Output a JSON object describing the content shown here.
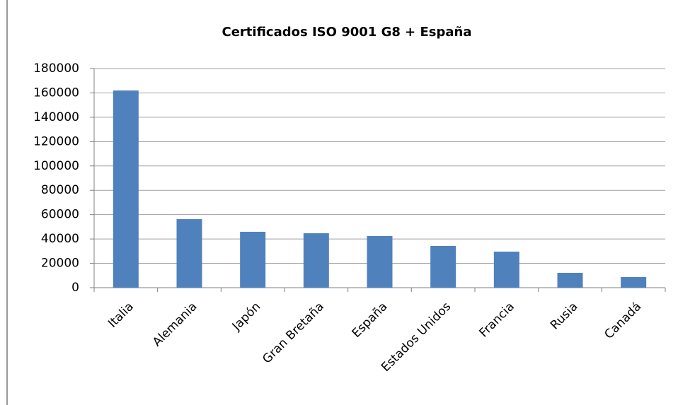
{
  "chart_data": {
    "type": "bar",
    "title": "Certificados ISO 9001 G8 + España",
    "categories": [
      "Italia",
      "Alemania",
      "Japón",
      "Gran Bretaña",
      "España",
      "Estados Unidos",
      "Francia",
      "Rusia",
      "Canadá"
    ],
    "values": [
      162000,
      56300,
      45900,
      44700,
      42400,
      34300,
      29600,
      12200,
      8700
    ],
    "color": "#4f81bd",
    "ylim": [
      0,
      180000
    ],
    "yticks": [
      0,
      20000,
      40000,
      60000,
      80000,
      100000,
      120000,
      140000,
      160000,
      180000
    ],
    "grid": true
  }
}
